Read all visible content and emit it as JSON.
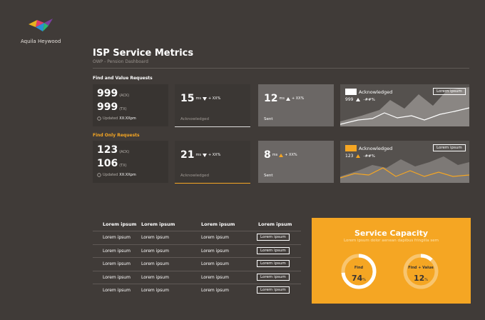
{
  "header": {
    "brand": "Aquila Heywood",
    "title": "ISP Service Metrics",
    "subtitle": "OWP - Pension Dashboard"
  },
  "sections": [
    {
      "title": "Find and Value Requests",
      "summary": {
        "ack": "999",
        "ack_label": "(ACK)",
        "tx": "999",
        "tx_label": "(TX)",
        "updated_label": "Updated",
        "updated_time": "XX:XXpm"
      },
      "latency": {
        "value": "15",
        "unit": "ms",
        "change": "+ XX%",
        "label": "Acknowledged"
      },
      "sent": {
        "value": "12",
        "unit": "ms",
        "change": "+ XX%",
        "label": "Sent"
      },
      "chart": {
        "legend": "Acknowledged",
        "value": "999",
        "change": "-##%",
        "button": "Lorem ipsum"
      }
    },
    {
      "title": "Find Only Requests",
      "summary": {
        "ack": "123",
        "ack_label": "(ACK)",
        "tx": "106",
        "tx_label": "(TX)",
        "updated_label": "Updated",
        "updated_time": "XX:XXpm"
      },
      "latency": {
        "value": "21",
        "unit": "ms",
        "change": "+ XX%",
        "label": "Acknowledged"
      },
      "sent": {
        "value": "8",
        "unit": "ms",
        "change": "+ XX%",
        "label": "Sent"
      },
      "chart": {
        "legend": "Acknowledged",
        "value": "123",
        "change": "-##%",
        "button": "Lorem ipsum"
      }
    }
  ],
  "table": {
    "headers": [
      "Lorem ipsum",
      "Lorem ipsum",
      "Lorem ipsum",
      "Lorem ipsum"
    ],
    "rows": [
      [
        "Lorem ipsum",
        "Lorem ipsum",
        "Lorem ipsum",
        "Lorem ipsum"
      ],
      [
        "Lorem ipsum",
        "Lorem ipsum",
        "Lorem ipsum",
        "Lorem ipsum"
      ],
      [
        "Lorem ipsum",
        "Lorem ipsum",
        "Lorem ipsum",
        "Lorem ipsum"
      ],
      [
        "Lorem ipsum",
        "Lorem ipsum",
        "Lorem ipsum",
        "Lorem ipsum"
      ],
      [
        "Lorem ipsum",
        "Lorem ipsum",
        "Lorem ipsum",
        "Lorem ipsum"
      ]
    ]
  },
  "capacity": {
    "title": "Service Capacity",
    "subtitle": "Lorem ipsum dolor aenean dapibus fringilla sem",
    "gauges": [
      {
        "label": "Find",
        "value": 74,
        "unit": "%"
      },
      {
        "label": "Find + Value",
        "value": 12,
        "unit": "%"
      }
    ]
  }
}
